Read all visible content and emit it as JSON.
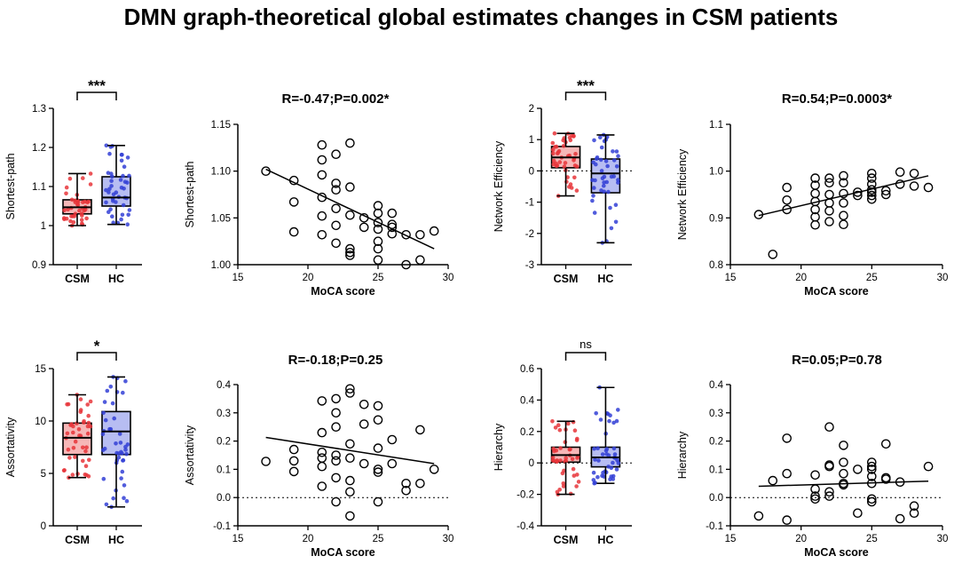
{
  "figure_title": "DMN graph-theoretical global estimates changes in CSM patients",
  "colors": {
    "csm": "#e8353a",
    "hc": "#3340d6",
    "csm_fill": "#f6b7b7",
    "hc_fill": "#b7bdf2",
    "axis": "#000000"
  },
  "chart_data": [
    {
      "id": "sp-box",
      "type": "box",
      "ylabel": "Shortest-path",
      "ylim": [
        0.9,
        1.3
      ],
      "yticks": [
        0.9,
        1.0,
        1.1,
        1.2,
        1.3
      ],
      "categories": [
        "CSM",
        "HC"
      ],
      "significance": "***",
      "series": [
        {
          "name": "CSM",
          "min": 1.0,
          "q1": 1.03,
          "median": 1.047,
          "q3": 1.066,
          "max": 1.133
        },
        {
          "name": "HC",
          "min": 1.003,
          "q1": 1.05,
          "median": 1.072,
          "q3": 1.125,
          "max": 1.205
        }
      ]
    },
    {
      "id": "sp-scatter",
      "type": "scatter",
      "title": "R=-0.47;P=0.002*",
      "xlabel": "MoCA score",
      "ylabel": "Shortest-path",
      "xlim": [
        15,
        30
      ],
      "ylim": [
        1.0,
        1.15
      ],
      "xticks": [
        15,
        20,
        25,
        30
      ],
      "yticks": [
        1.0,
        1.05,
        1.1,
        1.15
      ],
      "yticklabels": [
        "1.00",
        "1.05",
        "1.10",
        "1.15"
      ],
      "points": [
        [
          17,
          1.1
        ],
        [
          19,
          1.09
        ],
        [
          19,
          1.067
        ],
        [
          19,
          1.035
        ],
        [
          21,
          1.128
        ],
        [
          21,
          1.112
        ],
        [
          21,
          1.096
        ],
        [
          21,
          1.072
        ],
        [
          21,
          1.052
        ],
        [
          21,
          1.032
        ],
        [
          22,
          1.118
        ],
        [
          22,
          1.087
        ],
        [
          22,
          1.08
        ],
        [
          22,
          1.06
        ],
        [
          22,
          1.042
        ],
        [
          22,
          1.023
        ],
        [
          23,
          1.13
        ],
        [
          23,
          1.083
        ],
        [
          23,
          1.053
        ],
        [
          23,
          1.017
        ],
        [
          23,
          1.013
        ],
        [
          23,
          1.01
        ],
        [
          24,
          1.05
        ],
        [
          24,
          1.04
        ],
        [
          25,
          1.063
        ],
        [
          25,
          1.055
        ],
        [
          25,
          1.045
        ],
        [
          25,
          1.038
        ],
        [
          25,
          1.025
        ],
        [
          25,
          1.017
        ],
        [
          25,
          1.005
        ],
        [
          26,
          1.055
        ],
        [
          26,
          1.043
        ],
        [
          26,
          1.04
        ],
        [
          26,
          1.033
        ],
        [
          27,
          1.032
        ],
        [
          27,
          1.0
        ],
        [
          28,
          1.005
        ],
        [
          28,
          1.032
        ],
        [
          29,
          1.036
        ]
      ],
      "fit": [
        [
          17,
          1.102
        ],
        [
          29,
          1.017
        ]
      ]
    },
    {
      "id": "ne-box",
      "type": "box",
      "ylabel": "Network Efficiency",
      "ylim": [
        -3,
        2
      ],
      "yticks": [
        -3,
        -2,
        -1,
        0,
        1,
        2
      ],
      "categories": [
        "CSM",
        "HC"
      ],
      "significance": "***",
      "dotted_zero": true,
      "series": [
        {
          "name": "CSM",
          "min": -0.8,
          "q1": 0.1,
          "median": 0.43,
          "q3": 0.78,
          "max": 1.2
        },
        {
          "name": "HC",
          "min": -2.3,
          "q1": -0.7,
          "median": -0.08,
          "q3": 0.38,
          "max": 1.15
        }
      ]
    },
    {
      "id": "ne-scatter",
      "type": "scatter",
      "title": "R=0.54;P=0.0003*",
      "xlabel": "MoCA score",
      "ylabel": "Network Efficiency",
      "xlim": [
        15,
        30
      ],
      "ylim": [
        0.8,
        1.1
      ],
      "xticks": [
        15,
        20,
        25,
        30
      ],
      "yticks": [
        0.8,
        0.9,
        1.0,
        1.1
      ],
      "yticklabels": [
        "0.8",
        "0.9",
        "1.0",
        "1.1"
      ],
      "points": [
        [
          17,
          0.907
        ],
        [
          18,
          0.822
        ],
        [
          19,
          0.965
        ],
        [
          19,
          0.938
        ],
        [
          19,
          0.918
        ],
        [
          21,
          0.985
        ],
        [
          21,
          0.97
        ],
        [
          21,
          0.952
        ],
        [
          21,
          0.935
        ],
        [
          21,
          0.918
        ],
        [
          21,
          0.902
        ],
        [
          21,
          0.885
        ],
        [
          22,
          0.985
        ],
        [
          22,
          0.975
        ],
        [
          22,
          0.95
        ],
        [
          22,
          0.932
        ],
        [
          22,
          0.915
        ],
        [
          22,
          0.892
        ],
        [
          23,
          0.99
        ],
        [
          23,
          0.975
        ],
        [
          23,
          0.952
        ],
        [
          23,
          0.932
        ],
        [
          23,
          0.905
        ],
        [
          23,
          0.886
        ],
        [
          24,
          0.955
        ],
        [
          24,
          0.948
        ],
        [
          25,
          0.995
        ],
        [
          25,
          0.985
        ],
        [
          25,
          0.972
        ],
        [
          25,
          0.96
        ],
        [
          25,
          0.955
        ],
        [
          25,
          0.948
        ],
        [
          25,
          0.94
        ],
        [
          26,
          0.958
        ],
        [
          26,
          0.95
        ],
        [
          27,
          0.998
        ],
        [
          27,
          0.972
        ],
        [
          28,
          0.995
        ],
        [
          28,
          0.968
        ],
        [
          29,
          0.965
        ]
      ],
      "fit": [
        [
          17,
          0.905
        ],
        [
          29,
          0.99
        ]
      ]
    },
    {
      "id": "as-box",
      "type": "box",
      "ylabel": "Assortativity",
      "ylim": [
        0,
        15
      ],
      "yticks": [
        0,
        5,
        10,
        15
      ],
      "categories": [
        "CSM",
        "HC"
      ],
      "significance": "*",
      "series": [
        {
          "name": "CSM",
          "min": 4.6,
          "q1": 6.8,
          "median": 8.4,
          "q3": 9.8,
          "max": 12.5
        },
        {
          "name": "HC",
          "min": 1.8,
          "q1": 6.8,
          "median": 9.0,
          "q3": 10.9,
          "max": 14.2
        }
      ]
    },
    {
      "id": "as-scatter",
      "type": "scatter",
      "title": "R=-0.18;P=0.25",
      "xlabel": "MoCA score",
      "ylabel": "Assortativity",
      "xlim": [
        15,
        30
      ],
      "ylim": [
        -0.1,
        0.4
      ],
      "xticks": [
        15,
        20,
        25,
        30
      ],
      "yticks": [
        -0.1,
        0.0,
        0.1,
        0.2,
        0.3,
        0.4
      ],
      "yticklabels": [
        "-0.1",
        "0.0",
        "0.1",
        "0.2",
        "0.3",
        "0.4"
      ],
      "dotted_zero": true,
      "points": [
        [
          17,
          0.128
        ],
        [
          19,
          0.17
        ],
        [
          19,
          0.13
        ],
        [
          19,
          0.092
        ],
        [
          21,
          0.342
        ],
        [
          21,
          0.23
        ],
        [
          21,
          0.16
        ],
        [
          21,
          0.14
        ],
        [
          21,
          0.11
        ],
        [
          21,
          0.04
        ],
        [
          22,
          0.35
        ],
        [
          22,
          0.3
        ],
        [
          22,
          0.25
        ],
        [
          22,
          0.15
        ],
        [
          22,
          0.13
        ],
        [
          22,
          0.07
        ],
        [
          22,
          -0.015
        ],
        [
          23,
          0.385
        ],
        [
          23,
          0.37
        ],
        [
          23,
          0.19
        ],
        [
          23,
          0.14
        ],
        [
          23,
          0.06
        ],
        [
          23,
          0.02
        ],
        [
          23,
          -0.065
        ],
        [
          24,
          0.33
        ],
        [
          24,
          0.26
        ],
        [
          24,
          0.12
        ],
        [
          25,
          0.325
        ],
        [
          25,
          0.275
        ],
        [
          25,
          0.175
        ],
        [
          25,
          0.1
        ],
        [
          25,
          0.09
        ],
        [
          25,
          -0.015
        ],
        [
          26,
          0.205
        ],
        [
          26,
          0.12
        ],
        [
          27,
          0.05
        ],
        [
          27,
          0.025
        ],
        [
          28,
          0.24
        ],
        [
          28,
          0.05
        ],
        [
          29,
          0.1
        ]
      ],
      "fit": [
        [
          17,
          0.213
        ],
        [
          29,
          0.12
        ]
      ]
    },
    {
      "id": "hi-box",
      "type": "box",
      "ylabel": "Hierarchy",
      "ylim": [
        -0.4,
        0.6
      ],
      "yticks": [
        -0.4,
        -0.2,
        0.0,
        0.2,
        0.4,
        0.6
      ],
      "categories": [
        "CSM",
        "HC"
      ],
      "significance": "ns",
      "dotted_zero": true,
      "series": [
        {
          "name": "CSM",
          "min": -0.2,
          "q1": 0.005,
          "median": 0.05,
          "q3": 0.1,
          "max": 0.265
        },
        {
          "name": "HC",
          "min": -0.13,
          "q1": -0.025,
          "median": 0.035,
          "q3": 0.1,
          "max": 0.48
        }
      ]
    },
    {
      "id": "hi-scatter",
      "type": "scatter",
      "title": "R=0.05;P=0.78",
      "xlabel": "MoCA score",
      "ylabel": "Hierarchy",
      "xlim": [
        15,
        30
      ],
      "ylim": [
        -0.1,
        0.4
      ],
      "xticks": [
        15,
        20,
        25,
        30
      ],
      "yticks": [
        -0.1,
        0.0,
        0.1,
        0.2,
        0.3,
        0.4
      ],
      "yticklabels": [
        "-0.1",
        "0.0",
        "0.1",
        "0.2",
        "0.3",
        "0.4"
      ],
      "dotted_zero": true,
      "points": [
        [
          17,
          -0.065
        ],
        [
          18,
          0.06
        ],
        [
          19,
          0.21
        ],
        [
          19,
          0.085
        ],
        [
          19,
          -0.08
        ],
        [
          21,
          0.08
        ],
        [
          21,
          0.03
        ],
        [
          21,
          0.005
        ],
        [
          21,
          -0.005
        ],
        [
          22,
          0.25
        ],
        [
          22,
          0.115
        ],
        [
          22,
          0.11
        ],
        [
          22,
          0.02
        ],
        [
          22,
          0.005
        ],
        [
          23,
          0.185
        ],
        [
          23,
          0.125
        ],
        [
          23,
          0.085
        ],
        [
          23,
          0.05
        ],
        [
          23,
          0.045
        ],
        [
          24,
          0.1
        ],
        [
          24,
          -0.055
        ],
        [
          25,
          0.125
        ],
        [
          25,
          0.11
        ],
        [
          25,
          0.1
        ],
        [
          25,
          0.075
        ],
        [
          25,
          0.05
        ],
        [
          25,
          -0.005
        ],
        [
          25,
          -0.015
        ],
        [
          26,
          0.19
        ],
        [
          26,
          0.07
        ],
        [
          26,
          0.065
        ],
        [
          27,
          0.055
        ],
        [
          27,
          -0.075
        ],
        [
          28,
          -0.03
        ],
        [
          28,
          -0.055
        ],
        [
          29,
          0.11
        ]
      ],
      "fit": [
        [
          17,
          0.04
        ],
        [
          29,
          0.058
        ]
      ]
    }
  ]
}
